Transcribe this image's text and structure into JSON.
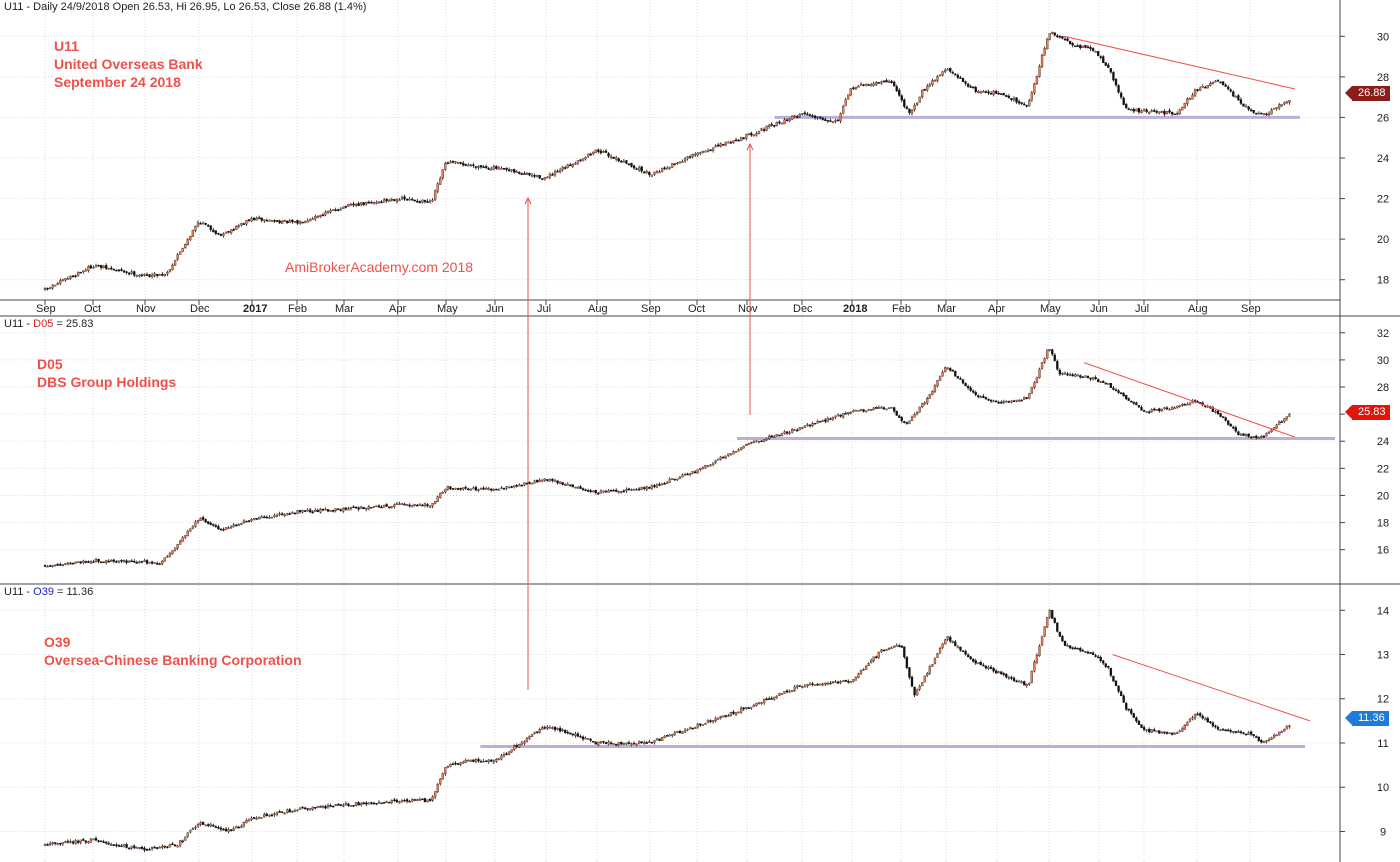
{
  "colors": {
    "bull": "#ec7a52",
    "bear": "#111111",
    "trendline": "#f0504a",
    "support": "#b8b0d8",
    "annotation": "#f0504a",
    "u11_tag": "#8a1e18",
    "d05_tag": "#e0150c",
    "o39_tag": "#1e7cd8"
  },
  "watermark": "AmiBrokerAcademy.com  2018",
  "chart_data": [
    {
      "type": "candlestick",
      "panel": "U11",
      "header": {
        "prefix": "U11 - Daily 24/9/2018 Open 26.53, Hi 26.95, Lo 26.53, Close 26.88 (1.4%)"
      },
      "labels": [
        "U11",
        "United Overseas Bank",
        "September 24 2018"
      ],
      "price_tag": "26.88",
      "yticks": [
        "18",
        "20",
        "22",
        "24",
        "26",
        "28",
        "30"
      ],
      "ylim": [
        17,
        31
      ],
      "x_axis": [
        "Sep",
        "Oct",
        "Nov",
        "Dec",
        "2017",
        "Feb",
        "Mar",
        "Apr",
        "May",
        "Jun",
        "Jul",
        "Aug",
        "Sep",
        "Oct",
        "Nov",
        "Dec",
        "2018",
        "Feb",
        "Mar",
        "Apr",
        "May",
        "Jun",
        "Jul",
        "Aug",
        "Sep"
      ],
      "x_axis_bold": [
        "2017",
        "2018"
      ],
      "close_path": [
        [
          0,
          17.5
        ],
        [
          1,
          18.7
        ],
        [
          2,
          18.2
        ],
        [
          2.4,
          18.3
        ],
        [
          3,
          20.9
        ],
        [
          3.4,
          20.2
        ],
        [
          4,
          21.0
        ],
        [
          5,
          20.8
        ],
        [
          6,
          21.6
        ],
        [
          7,
          22.0
        ],
        [
          7.7,
          21.8
        ],
        [
          8,
          23.8
        ],
        [
          9,
          23.5
        ],
        [
          10,
          23.0
        ],
        [
          11,
          24.4
        ],
        [
          12,
          23.2
        ],
        [
          13,
          24.2
        ],
        [
          14,
          25.1
        ],
        [
          15,
          26.2
        ],
        [
          15.7,
          25.8
        ],
        [
          16,
          27.5
        ],
        [
          16.8,
          27.8
        ],
        [
          17.2,
          26.1
        ],
        [
          17.5,
          27.4
        ],
        [
          18,
          28.4
        ],
        [
          18.6,
          27.3
        ],
        [
          19,
          27.2
        ],
        [
          19.6,
          26.6
        ],
        [
          20,
          30.2
        ],
        [
          20.5,
          29.6
        ],
        [
          20.9,
          29.3
        ],
        [
          21.2,
          28.5
        ],
        [
          21.6,
          26.4
        ],
        [
          22,
          26.3
        ],
        [
          22.6,
          26.2
        ],
        [
          23,
          27.4
        ],
        [
          23.4,
          27.8
        ],
        [
          24,
          26.3
        ],
        [
          24.3,
          26.1
        ],
        [
          24.8,
          26.9
        ]
      ],
      "trendline": [
        [
          20.3,
          30.0
        ],
        [
          24.9,
          27.4
        ]
      ],
      "support": {
        "from": 14.5,
        "to": 25.0,
        "value": 26.0
      }
    },
    {
      "type": "candlestick",
      "panel": "D05",
      "header": {
        "prefix": "U11 - ",
        "symbol": "D05",
        "suffix": " = 25.83"
      },
      "labels": [
        "D05",
        "DBS Group Holdings"
      ],
      "price_tag": "25.83",
      "yticks": [
        "16",
        "18",
        "20",
        "22",
        "24",
        "26",
        "28",
        "30",
        "32"
      ],
      "ylim": [
        14.5,
        32.5
      ],
      "close_path": [
        [
          0,
          14.8
        ],
        [
          1,
          15.2
        ],
        [
          2,
          15.1
        ],
        [
          2.3,
          15.0
        ],
        [
          3,
          18.3
        ],
        [
          3.4,
          17.5
        ],
        [
          4,
          18.2
        ],
        [
          5,
          18.8
        ],
        [
          6,
          19.0
        ],
        [
          7,
          19.3
        ],
        [
          7.7,
          19.3
        ],
        [
          8,
          20.6
        ],
        [
          9,
          20.4
        ],
        [
          10,
          21.2
        ],
        [
          11,
          20.2
        ],
        [
          12,
          20.6
        ],
        [
          13,
          21.8
        ],
        [
          14,
          23.8
        ],
        [
          15,
          25.0
        ],
        [
          16,
          26.2
        ],
        [
          16.8,
          26.5
        ],
        [
          17.1,
          25.2
        ],
        [
          17.6,
          27.2
        ],
        [
          18,
          29.6
        ],
        [
          18.6,
          27.3
        ],
        [
          19,
          26.8
        ],
        [
          19.6,
          27.2
        ],
        [
          20,
          31.0
        ],
        [
          20.2,
          29.0
        ],
        [
          20.8,
          28.7
        ],
        [
          21.2,
          28.2
        ],
        [
          21.6,
          27.2
        ],
        [
          22,
          26.2
        ],
        [
          22.6,
          26.5
        ],
        [
          23,
          27.0
        ],
        [
          23.4,
          26.0
        ],
        [
          23.8,
          24.5
        ],
        [
          24.2,
          24.2
        ],
        [
          24.8,
          26.0
        ]
      ],
      "trendline": [
        [
          20.7,
          29.8
        ],
        [
          24.9,
          24.3
        ]
      ],
      "support": {
        "from": 13.8,
        "to": 25.7,
        "value": 24.2
      }
    },
    {
      "type": "candlestick",
      "panel": "O39",
      "header": {
        "prefix": "U11 - ",
        "symbol": "O39",
        "suffix": " = 11.36"
      },
      "labels": [
        "O39",
        "Oversea-Chinese Banking Corporation"
      ],
      "price_tag": "11.36",
      "yticks": [
        "9",
        "10",
        "11",
        "12",
        "13",
        "14"
      ],
      "ylim": [
        8.4,
        14.3
      ],
      "close_path": [
        [
          0,
          8.7
        ],
        [
          1,
          8.8
        ],
        [
          2,
          8.6
        ],
        [
          2.6,
          8.7
        ],
        [
          3,
          9.2
        ],
        [
          3.6,
          9.0
        ],
        [
          4,
          9.3
        ],
        [
          5,
          9.5
        ],
        [
          6,
          9.6
        ],
        [
          7,
          9.7
        ],
        [
          7.7,
          9.7
        ],
        [
          8,
          10.5
        ],
        [
          8.5,
          10.6
        ],
        [
          9,
          10.6
        ],
        [
          10,
          11.4
        ],
        [
          11,
          11.0
        ],
        [
          12,
          11.0
        ],
        [
          13,
          11.4
        ],
        [
          14,
          11.8
        ],
        [
          15,
          12.3
        ],
        [
          16,
          12.4
        ],
        [
          16.6,
          13.1
        ],
        [
          17,
          13.2
        ],
        [
          17.3,
          12.1
        ],
        [
          17.7,
          12.8
        ],
        [
          18,
          13.4
        ],
        [
          18.6,
          12.8
        ],
        [
          19,
          12.6
        ],
        [
          19.6,
          12.3
        ],
        [
          20,
          14.0
        ],
        [
          20.3,
          13.2
        ],
        [
          20.9,
          13.0
        ],
        [
          21.2,
          12.7
        ],
        [
          21.6,
          11.8
        ],
        [
          22,
          11.3
        ],
        [
          22.6,
          11.2
        ],
        [
          23,
          11.7
        ],
        [
          23.4,
          11.3
        ],
        [
          24,
          11.2
        ],
        [
          24.3,
          11.0
        ],
        [
          24.8,
          11.4
        ]
      ],
      "trendline": [
        [
          21.3,
          13.0
        ],
        [
          25.2,
          11.5
        ]
      ],
      "support": {
        "from": 8.7,
        "to": 25.1,
        "value": 10.92
      }
    }
  ]
}
